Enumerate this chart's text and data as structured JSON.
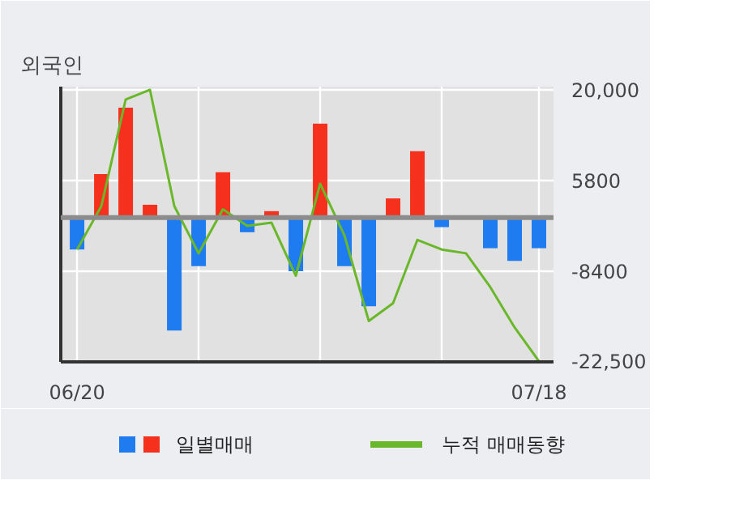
{
  "chart_data": {
    "type": "bar",
    "title": "외국인",
    "categories": [
      "06/20",
      null,
      null,
      null,
      null,
      null,
      null,
      null,
      null,
      null,
      null,
      null,
      null,
      null,
      null,
      null,
      null,
      null,
      null,
      "07/18"
    ],
    "series": [
      {
        "name": "일별매매",
        "colors": [
          "#1e7cf0",
          "#f5311e",
          "#f5311e",
          "#f5311e",
          "#1e7cf0",
          "#1e7cf0",
          "#f5311e",
          "#1e7cf0",
          "#f5311e",
          "#1e7cf0",
          "#f5311e",
          "#1e7cf0",
          "#1e7cf0",
          "#f5311e",
          "#f5311e",
          "#1e7cf0",
          "#1e7cf0",
          "#1e7cf0",
          "#1e7cf0",
          "#1e7cf0"
        ],
        "values": [
          -5000,
          6800,
          17200,
          2000,
          -17700,
          -7600,
          7100,
          -2300,
          1000,
          -8400,
          14700,
          -7600,
          -13900,
          3000,
          10400,
          -1500,
          0,
          -4800,
          -6800,
          -4800
        ]
      },
      {
        "name": "누적 매매동향",
        "type": "line",
        "color": "#6ab82a",
        "values": [
          -5000,
          1800,
          18500,
          20000,
          1800,
          -5600,
          1300,
          -1300,
          -800,
          -9100,
          5300,
          -2800,
          -16200,
          -13400,
          -3500,
          -5000,
          -5600,
          -10900,
          -17200,
          -22500
        ]
      }
    ],
    "ylim": [
      -22600,
      20500
    ],
    "yticks": [
      {
        "value": 20000,
        "label": "20,000"
      },
      5800,
      -8400,
      {
        "value": -22500,
        "label": "-22,500"
      }
    ],
    "ref_lines": [
      {
        "axis": "y",
        "value": 0,
        "color": "#8c8c8c"
      }
    ],
    "grid": true,
    "legend": "bottom"
  }
}
